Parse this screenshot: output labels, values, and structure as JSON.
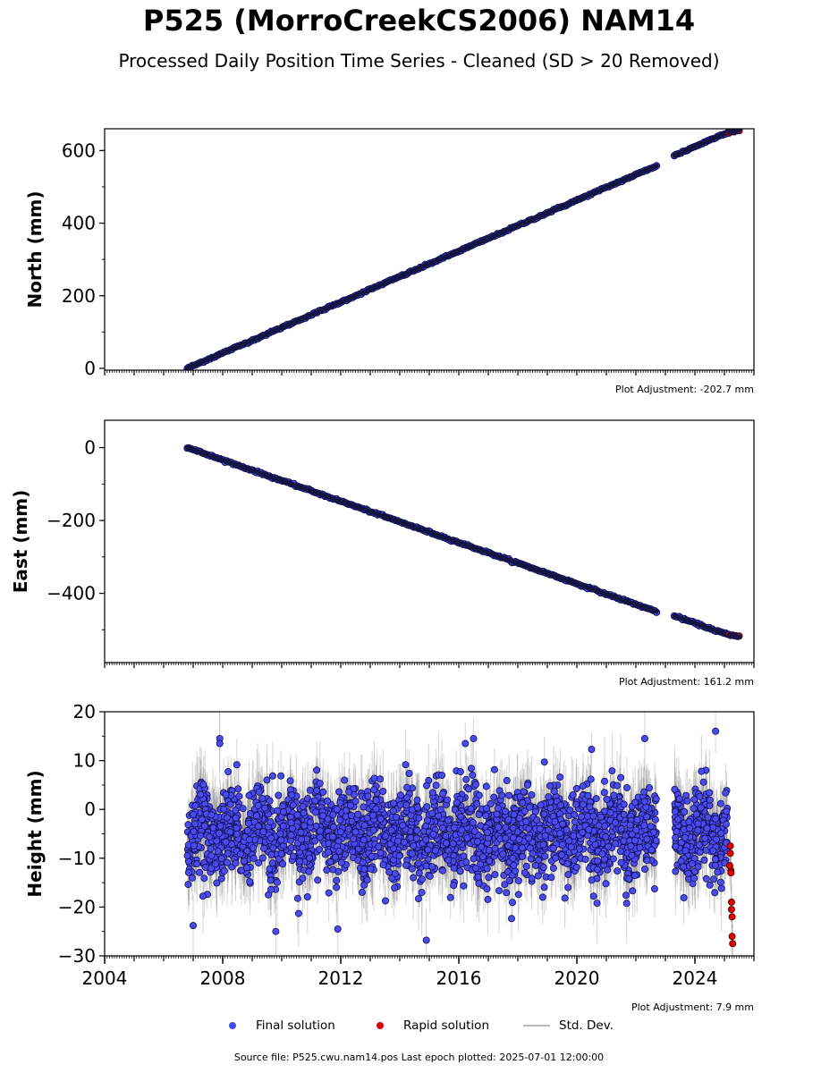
{
  "title": "P525 (MorroCreekCS2006) NAM14",
  "subtitle": "Processed Daily Position Time Series - Cleaned (SD > 20 Removed)",
  "footer": "Source file: P525.cwu.nam14.pos  Last epoch plotted: 2025-07-01 12:00:00",
  "legend": {
    "final": "Final solution",
    "rapid": "Rapid solution",
    "std": "Std. Dev."
  },
  "colors": {
    "final": "#4a4aef",
    "rapid": "#e00000",
    "std": "#888888"
  },
  "chart_data": [
    {
      "type": "scatter",
      "ylabel": "North (mm)",
      "adjustment": "Plot Adjustment: -202.7 mm",
      "xlim": [
        2004,
        2026
      ],
      "ylim": [
        -5,
        660
      ],
      "yticks": [
        0,
        200,
        400,
        600
      ],
      "yticklabels": [
        "0",
        "200",
        "400",
        "600"
      ],
      "series": [
        {
          "name": "Final solution",
          "kind": "linear",
          "segments": [
            {
              "x": [
                2006.8,
                2022.7
              ],
              "y": [
                0,
                558
              ]
            },
            {
              "x": [
                2023.3,
                2025.1
              ],
              "y": [
                586,
                650
              ]
            }
          ]
        },
        {
          "name": "Rapid solution",
          "kind": "linear",
          "segments": [
            {
              "x": [
                2025.15,
                2025.5
              ],
              "y": [
                650,
                656
              ]
            }
          ]
        }
      ]
    },
    {
      "type": "scatter",
      "ylabel": "East (mm)",
      "adjustment": "Plot Adjustment: 161.2 mm",
      "xlim": [
        2004,
        2026
      ],
      "ylim": [
        -590,
        75
      ],
      "yticks": [
        0,
        -200,
        -400
      ],
      "yticklabels": [
        "0",
        "−200",
        "−400"
      ],
      "series": [
        {
          "name": "Final solution",
          "kind": "linear",
          "segments": [
            {
              "x": [
                2006.8,
                2022.7
              ],
              "y": [
                0,
                -450
              ]
            },
            {
              "x": [
                2023.3,
                2025.1
              ],
              "y": [
                -462,
                -513
              ]
            }
          ]
        },
        {
          "name": "Rapid solution",
          "kind": "linear",
          "segments": [
            {
              "x": [
                2025.15,
                2025.5
              ],
              "y": [
                -514,
                -519
              ]
            }
          ]
        }
      ]
    },
    {
      "type": "scatter",
      "ylabel": "Height (mm)",
      "adjustment": "Plot Adjustment: 7.9 mm",
      "xlim": [
        2004,
        2026
      ],
      "ylim": [
        -30,
        20
      ],
      "yticks": [
        20,
        10,
        0,
        -10,
        -20,
        -30
      ],
      "yticklabels": [
        "20",
        "10",
        "0",
        "−10",
        "−20",
        "−30"
      ],
      "xticks": [
        2004,
        2008,
        2012,
        2016,
        2020,
        2024
      ],
      "xticklabels": [
        "2004",
        "2008",
        "2012",
        "2016",
        "2020",
        "2024"
      ],
      "series": [
        {
          "name": "Final solution",
          "kind": "scatter",
          "x_range": [
            [
              2006.8,
              2022.7
            ],
            [
              2023.3,
              2025.1
            ]
          ],
          "y_mean": -5,
          "y_spread": 4.5,
          "y_min": -27,
          "y_max": 16,
          "outliers": [
            {
              "x": 2007.9,
              "y": 14.5
            },
            {
              "x": 2007.9,
              "y": 13.5
            },
            {
              "x": 2016.5,
              "y": 14.5
            },
            {
              "x": 2022.3,
              "y": 14.5
            },
            {
              "x": 2024.7,
              "y": 16
            },
            {
              "x": 2014.9,
              "y": -26.8
            },
            {
              "x": 2009.8,
              "y": -25
            },
            {
              "x": 2011.9,
              "y": -24.5
            },
            {
              "x": 2007.0,
              "y": -23.8
            },
            {
              "x": 2020.5,
              "y": 12.3
            },
            {
              "x": 2018.9,
              "y": 9.7
            }
          ]
        },
        {
          "name": "Rapid solution",
          "kind": "scatter",
          "points": [
            {
              "x": 2025.2,
              "y": -7.5
            },
            {
              "x": 2025.2,
              "y": -9
            },
            {
              "x": 2025.22,
              "y": -12.5
            },
            {
              "x": 2025.22,
              "y": -13
            },
            {
              "x": 2025.24,
              "y": -19
            },
            {
              "x": 2025.24,
              "y": -20.5
            },
            {
              "x": 2025.26,
              "y": -22
            },
            {
              "x": 2025.26,
              "y": -26
            },
            {
              "x": 2025.28,
              "y": -27.5
            },
            {
              "x": 2025.18,
              "y": -11.5
            }
          ]
        }
      ]
    }
  ]
}
